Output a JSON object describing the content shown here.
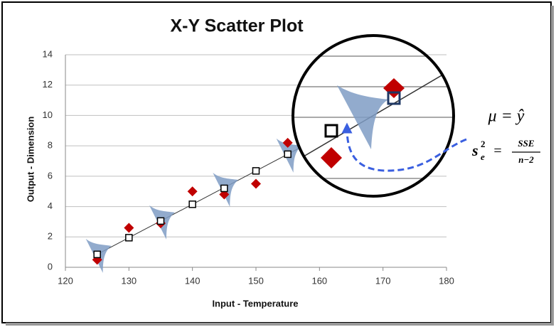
{
  "chart_data": {
    "type": "scatter",
    "title": "X-Y Scatter Plot",
    "x_label": "Input - Temperature",
    "y_label": "Output - Dimension",
    "x": [
      125,
      130,
      135,
      140,
      145,
      150,
      155
    ],
    "series": [
      {
        "color": "#c00000",
        "marker": "diamond",
        "values": [
          0.5,
          2.6,
          2.9,
          5.0,
          4.8,
          5.5,
          8.2
        ]
      },
      {
        "color": "#000000",
        "marker": "square",
        "values": [
          0.85,
          1.95,
          3.05,
          4.15,
          5.2,
          6.35,
          7.45
        ]
      }
    ],
    "trendline": true,
    "xlim": [
      120,
      180
    ],
    "xticks": [
      120,
      130,
      140,
      150,
      160,
      170,
      180
    ],
    "ylim": [
      0,
      14
    ],
    "yticks": [
      0,
      2,
      4,
      6,
      8,
      10,
      12,
      14
    ],
    "grid": true,
    "annotations": {
      "mean": "μ = ŷ",
      "var_s": "s",
      "var_sub": "e",
      "var_sup": "2",
      "var_eq": "=",
      "var_num": "SSE",
      "var_den": "n−2"
    }
  }
}
